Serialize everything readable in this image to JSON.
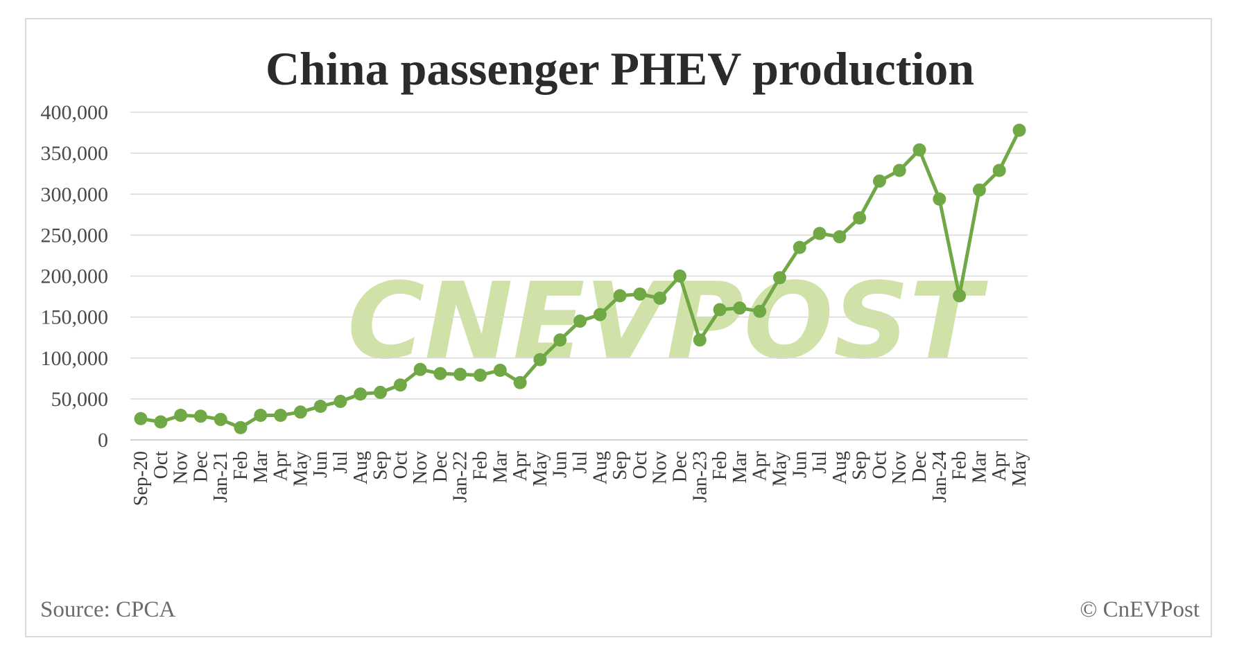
{
  "chart_data": {
    "type": "line",
    "title": "China passenger PHEV production",
    "source": "Source: CPCA",
    "credit": "© CnEVPost",
    "watermark": "CNEVPOST",
    "ylim": [
      0,
      400000
    ],
    "yticks": [
      0,
      50000,
      100000,
      150000,
      200000,
      250000,
      300000,
      350000,
      400000
    ],
    "ytick_labels": [
      "0",
      "50,000",
      "100,000",
      "150,000",
      "200,000",
      "250,000",
      "300,000",
      "350,000",
      "400,000"
    ],
    "grid": true,
    "line_color": "#70a845",
    "categories": [
      "Sep-20",
      "Oct",
      "Nov",
      "Dec",
      "Jan-21",
      "Feb",
      "Mar",
      "Apr",
      "May",
      "Jun",
      "Jul",
      "Aug",
      "Sep",
      "Oct",
      "Nov",
      "Dec",
      "Jan-22",
      "Feb",
      "Mar",
      "Apr",
      "May",
      "Jun",
      "Jul",
      "Aug",
      "Sep",
      "Oct",
      "Nov",
      "Dec",
      "Jan-23",
      "Feb",
      "Mar",
      "Apr",
      "May",
      "Jun",
      "Jul",
      "Aug",
      "Sep",
      "Oct",
      "Nov",
      "Dec",
      "Jan-24",
      "Feb",
      "Mar",
      "Apr",
      "May"
    ],
    "values": [
      26000,
      22000,
      30000,
      29000,
      25000,
      15000,
      30000,
      30000,
      34000,
      41000,
      47000,
      56000,
      58000,
      67000,
      86000,
      81000,
      80000,
      79000,
      85000,
      70000,
      98000,
      122000,
      145000,
      153000,
      176000,
      178000,
      173000,
      200000,
      122000,
      159000,
      161000,
      157000,
      198000,
      235000,
      252000,
      248000,
      271000,
      316000,
      329000,
      354000,
      294000,
      176000,
      305000,
      329000,
      378000
    ]
  }
}
